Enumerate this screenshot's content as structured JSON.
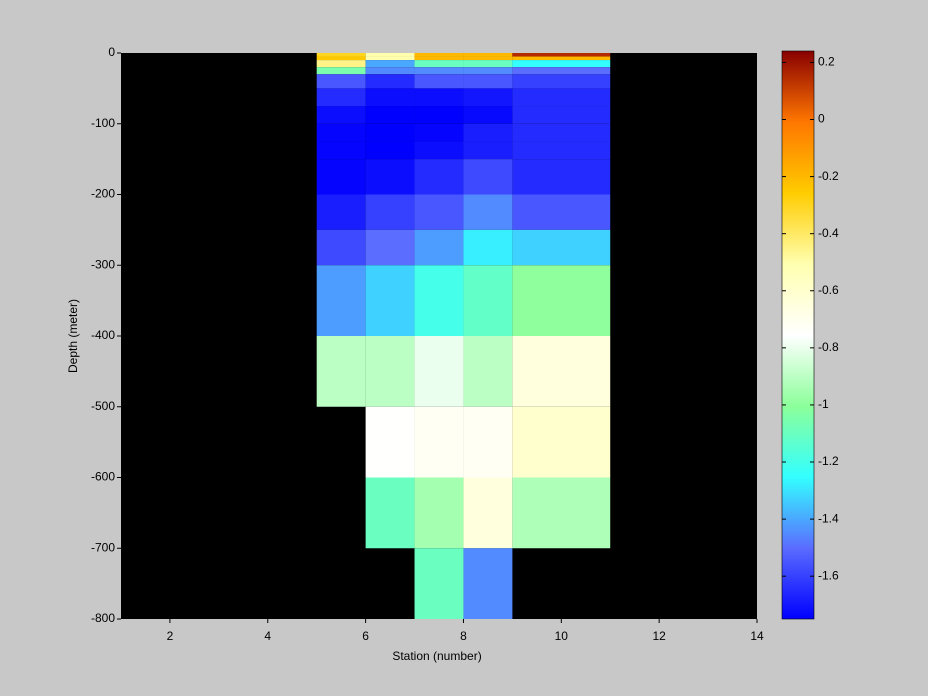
{
  "chart_data": {
    "type": "heatmap",
    "xlabel": "Station (number)",
    "ylabel": "Depth (meter)",
    "xlim": [
      1,
      14
    ],
    "xticks": [
      2,
      4,
      6,
      8,
      10,
      12,
      14
    ],
    "ylim": [
      -800,
      0
    ],
    "yticks": [
      0,
      -100,
      -200,
      -300,
      -400,
      -500,
      -600,
      -700,
      -800
    ],
    "background": "#000000",
    "x_edges": [
      5,
      6,
      7,
      8,
      9,
      11
    ],
    "y_edges": [
      0,
      -5,
      -10,
      -20,
      -30,
      -50,
      -75,
      -100,
      -125,
      -150,
      -200,
      -250,
      -300,
      -400,
      -500,
      -600,
      -700,
      -800
    ],
    "values": [
      [
        -0.3,
        -0.5,
        -0.2,
        -0.2,
        0.15
      ],
      [
        -0.25,
        -0.5,
        -0.2,
        -0.2,
        -0.2
      ],
      [
        -0.45,
        -1.4,
        -1.1,
        -1.1,
        -1.25
      ],
      [
        -1.05,
        -1.45,
        -1.45,
        -1.45,
        -1.5
      ],
      [
        -1.55,
        -1.65,
        -1.55,
        -1.55,
        -1.6
      ],
      [
        -1.65,
        -1.72,
        -1.72,
        -1.7,
        -1.65
      ],
      [
        -1.72,
        -1.75,
        -1.75,
        -1.73,
        -1.65
      ],
      [
        -1.74,
        -1.75,
        -1.74,
        -1.68,
        -1.65
      ],
      [
        -1.74,
        -1.75,
        -1.72,
        -1.68,
        -1.65
      ],
      [
        -1.74,
        -1.72,
        -1.65,
        -1.58,
        -1.65
      ],
      [
        -1.68,
        -1.6,
        -1.55,
        -1.45,
        -1.55
      ],
      [
        -1.58,
        -1.5,
        -1.42,
        -1.28,
        -1.33
      ],
      [
        -1.42,
        -1.33,
        -1.2,
        -1.12,
        -1.0
      ],
      [
        -0.9,
        -0.9,
        -0.8,
        -0.9,
        -0.65
      ],
      [
        null,
        -0.75,
        -0.72,
        -0.72,
        -0.6
      ],
      [
        null,
        -1.1,
        -0.95,
        -0.65,
        -0.93
      ],
      [
        null,
        null,
        -1.1,
        -1.45,
        null
      ]
    ],
    "clim": [
      -1.75,
      0.24
    ],
    "colorbar_ticks": [
      0.2,
      0,
      -0.2,
      -0.4,
      -0.6,
      -0.8,
      -1,
      -1.2,
      -1.4,
      -1.6
    ],
    "colormap": [
      "#0000ff",
      "#5a6cff",
      "#33ffff",
      "#8cff9a",
      "#ffffff",
      "#ffffb0",
      "#ffcc00",
      "#ff7700",
      "#880000"
    ]
  }
}
